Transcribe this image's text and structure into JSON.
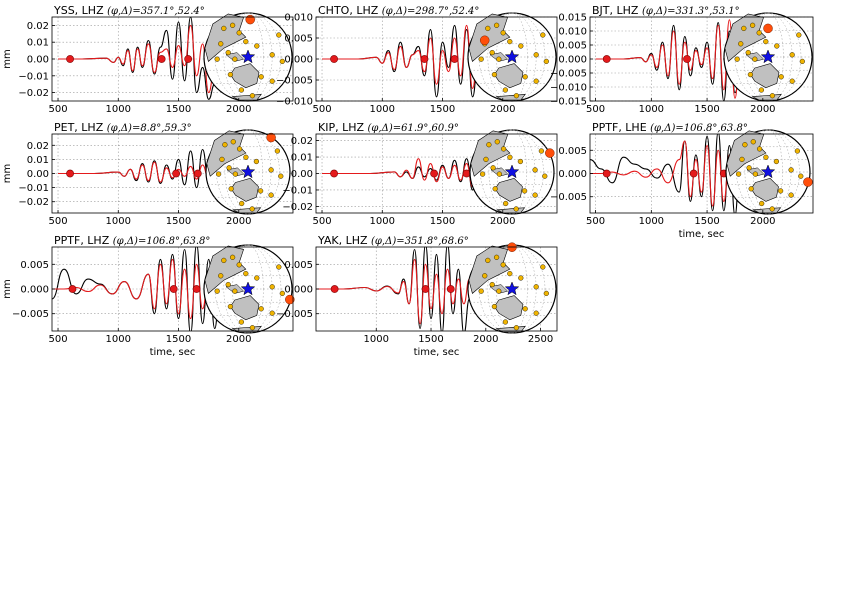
{
  "colors": {
    "observed": "#000000",
    "synthetic": "#e41a1c",
    "marker": "#e41a1c",
    "grid": "#9a9a9a",
    "globe_land": "#c0c0c0",
    "globe_station": "#f0b400",
    "globe_active": "#ff4e0a",
    "globe_event": "#1010e0"
  },
  "icons": [
    "globe-inset-icon",
    "event-star-icon",
    "station-dot-icon"
  ],
  "chart_data": [
    {
      "type": "line",
      "title": "YSS, LHZ",
      "angles": "(φ,Δ)=357.1°,52.4°",
      "ylabel": "mm",
      "xlabel": "",
      "xlim": [
        450,
        2450
      ],
      "ylim": [
        -0.025,
        0.025
      ],
      "xticks": [
        500,
        1000,
        1500,
        2000
      ],
      "yticks": [
        -0.02,
        -0.01,
        0.0,
        0.01,
        0.02
      ],
      "ytick_labels": [
        "−0.02",
        "−0.01",
        "0.00",
        "0.01",
        "0.02"
      ],
      "grid": true,
      "series": [
        {
          "key": "obs",
          "x": [
            500,
            700,
            900,
            960,
            1000,
            1040,
            1080,
            1120,
            1160,
            1200,
            1250,
            1300,
            1350,
            1400,
            1450,
            1500,
            1550,
            1600,
            1650,
            1700,
            1750,
            1800
          ],
          "values": [
            0,
            0,
            0.0005,
            -0.002,
            0.001,
            -0.004,
            0.006,
            -0.008,
            0.007,
            -0.005,
            0.011,
            -0.009,
            0.007,
            0.017,
            -0.012,
            0.022,
            -0.013,
            0.025,
            -0.02,
            -0.005,
            -0.024,
            -0.015
          ]
        },
        {
          "key": "syn",
          "x": [
            500,
            700,
            900,
            960,
            1000,
            1040,
            1080,
            1120,
            1160,
            1200,
            1250,
            1300,
            1350,
            1400,
            1450,
            1500,
            1550,
            1600,
            1650,
            1700,
            1750,
            1800,
            1850
          ],
          "values": [
            0,
            0,
            0.0005,
            -0.002,
            0.001,
            -0.003,
            0.005,
            -0.007,
            0.006,
            -0.004,
            0.009,
            -0.008,
            0.004,
            0.006,
            -0.005,
            0.008,
            -0.004,
            0.02,
            -0.01,
            0.009,
            -0.02,
            -0.005,
            0.003
          ]
        }
      ],
      "markers": [
        600,
        1360,
        1580
      ]
    },
    {
      "type": "line",
      "title": "CHTO, LHZ",
      "angles": "(φ,Δ)=298.7°,52.4°",
      "ylabel": "",
      "xlabel": "",
      "xlim": [
        450,
        2450
      ],
      "ylim": [
        -0.01,
        0.01
      ],
      "xticks": [
        500,
        1000,
        1500,
        2000
      ],
      "yticks": [
        -0.01,
        -0.005,
        0.0,
        0.005,
        0.01
      ],
      "ytick_labels": [
        "−0.010",
        "−0.005",
        "0.000",
        "0.005",
        "0.010"
      ],
      "grid": true,
      "series": [
        {
          "key": "obs",
          "x": [
            500,
            800,
            950,
            1000,
            1050,
            1100,
            1150,
            1200,
            1250,
            1300,
            1350,
            1400,
            1450,
            1500,
            1550,
            1600,
            1650,
            1700,
            1750,
            1800,
            1850
          ],
          "values": [
            0,
            0,
            0.0004,
            -0.001,
            0.002,
            -0.003,
            0.004,
            -0.002,
            0.001,
            0.003,
            -0.004,
            0.007,
            -0.009,
            0.004,
            -0.002,
            0.008,
            -0.006,
            0.007,
            -0.009,
            0.002,
            -0.001
          ]
        },
        {
          "key": "syn",
          "x": [
            500,
            800,
            950,
            1000,
            1050,
            1100,
            1150,
            1200,
            1250,
            1300,
            1350,
            1400,
            1450,
            1500,
            1550,
            1600,
            1650,
            1700,
            1750,
            1800,
            1850,
            1900
          ],
          "values": [
            0,
            0,
            0.0004,
            -0.001,
            0.0015,
            -0.0025,
            0.003,
            -0.002,
            0.001,
            0.002,
            -0.003,
            0.005,
            -0.006,
            0.002,
            -0.003,
            0.005,
            -0.004,
            0.008,
            -0.007,
            0.005,
            -0.005,
            0.002
          ]
        }
      ],
      "markers": [
        600,
        1350,
        1600
      ]
    },
    {
      "type": "line",
      "title": "BJT, LHZ",
      "angles": "(φ,Δ)=331.3°,53.1°",
      "ylabel": "",
      "xlabel": "",
      "xlim": [
        450,
        2450
      ],
      "ylim": [
        -0.015,
        0.015
      ],
      "xticks": [
        500,
        1000,
        1500,
        2000
      ],
      "yticks": [
        -0.015,
        -0.01,
        -0.005,
        0.0,
        0.005,
        0.01,
        0.015
      ],
      "ytick_labels": [
        "−0.015",
        "−0.010",
        "−0.005",
        "0.000",
        "0.005",
        "0.010",
        "0.015"
      ],
      "grid": true,
      "series": [
        {
          "key": "obs",
          "x": [
            500,
            750,
            900,
            950,
            1000,
            1050,
            1100,
            1150,
            1200,
            1250,
            1300,
            1350,
            1400,
            1450,
            1500,
            1550,
            1600,
            1650,
            1700,
            1750,
            1800
          ],
          "values": [
            0,
            0,
            0.0005,
            -0.001,
            0.002,
            -0.004,
            0.006,
            -0.007,
            0.012,
            -0.011,
            0.008,
            -0.006,
            0.004,
            -0.003,
            0.006,
            -0.009,
            0.013,
            -0.015,
            0.01,
            -0.012,
            -0.005
          ]
        },
        {
          "key": "syn",
          "x": [
            500,
            750,
            900,
            950,
            1000,
            1050,
            1100,
            1150,
            1200,
            1250,
            1300,
            1350,
            1400,
            1450,
            1500,
            1550,
            1600,
            1650,
            1700,
            1750,
            1800,
            1850
          ],
          "values": [
            0,
            0,
            0.0005,
            -0.001,
            0.0015,
            -0.003,
            0.005,
            -0.006,
            0.01,
            -0.009,
            0.006,
            -0.004,
            0.003,
            -0.002,
            0.004,
            -0.007,
            0.012,
            -0.011,
            0.014,
            -0.014,
            0.006,
            -0.003
          ]
        }
      ],
      "markers": [
        600,
        1320,
        1680
      ]
    },
    {
      "type": "line",
      "title": "PET, LHZ",
      "angles": "(φ,Δ)=8.8°,59.3°",
      "ylabel": "mm",
      "xlabel": "",
      "xlim": [
        450,
        2450
      ],
      "ylim": [
        -0.028,
        0.028
      ],
      "xticks": [
        500,
        1000,
        1500,
        2000
      ],
      "yticks": [
        -0.02,
        -0.01,
        0.0,
        0.01,
        0.02
      ],
      "ytick_labels": [
        "−0.02",
        "−0.01",
        "0.00",
        "0.01",
        "0.02"
      ],
      "grid": true,
      "series": [
        {
          "key": "obs",
          "x": [
            500,
            800,
            1000,
            1050,
            1100,
            1150,
            1200,
            1250,
            1300,
            1350,
            1400,
            1450,
            1500,
            1550,
            1600,
            1650,
            1700,
            1750,
            1800,
            1850,
            1900
          ],
          "values": [
            0,
            0,
            0.001,
            -0.002,
            0.003,
            -0.005,
            0.007,
            -0.006,
            0.009,
            -0.007,
            0.006,
            -0.004,
            0.01,
            -0.008,
            0.016,
            -0.01,
            0.017,
            -0.006,
            0.012,
            -0.02,
            0.005
          ]
        },
        {
          "key": "syn",
          "x": [
            500,
            800,
            1000,
            1050,
            1100,
            1150,
            1200,
            1250,
            1300,
            1350,
            1400,
            1450,
            1500,
            1550,
            1600,
            1650,
            1700,
            1750,
            1800,
            1850,
            1900,
            1950
          ],
          "values": [
            0,
            0,
            0.001,
            -0.002,
            0.003,
            -0.004,
            0.006,
            -0.005,
            0.008,
            -0.006,
            0.004,
            -0.003,
            0.003,
            -0.002,
            0.005,
            -0.004,
            0.006,
            -0.004,
            0.009,
            -0.012,
            0.015,
            -0.021
          ]
        }
      ],
      "markers": [
        600,
        1480,
        1660
      ]
    },
    {
      "type": "line",
      "title": "KIP, LHZ",
      "angles": "(φ,Δ)=61.9°,60.9°",
      "ylabel": "",
      "xlabel": "",
      "xlim": [
        450,
        2450
      ],
      "ylim": [
        -0.024,
        0.024
      ],
      "xticks": [
        500,
        1000,
        1500,
        2000
      ],
      "yticks": [
        -0.02,
        -0.01,
        0.0,
        0.01,
        0.02
      ],
      "ytick_labels": [
        "−0.02",
        "−0.01",
        "0.00",
        "0.01",
        "0.02"
      ],
      "grid": true,
      "series": [
        {
          "key": "obs",
          "x": [
            500,
            900,
            1100,
            1150,
            1200,
            1250,
            1300,
            1350,
            1400,
            1450,
            1500,
            1550,
            1600,
            1650,
            1700,
            1750,
            1800,
            1850,
            1900,
            1950
          ],
          "values": [
            0,
            0,
            0.001,
            -0.002,
            0.001,
            -0.003,
            0.004,
            -0.002,
            0.003,
            -0.004,
            0.005,
            -0.003,
            0.008,
            -0.005,
            0.009,
            -0.01,
            0.006,
            -0.012,
            0.015,
            -0.024
          ]
        },
        {
          "key": "syn",
          "x": [
            500,
            900,
            1100,
            1150,
            1200,
            1250,
            1300,
            1350,
            1400,
            1450,
            1500,
            1550,
            1600,
            1650,
            1700,
            1750,
            1800,
            1850,
            1900,
            1950
          ],
          "values": [
            0,
            0,
            0.001,
            -0.002,
            0.002,
            -0.003,
            0.009,
            -0.004,
            0.006,
            -0.005,
            0.004,
            -0.003,
            0.005,
            -0.004,
            0.006,
            -0.008,
            0.004,
            -0.01,
            0.012,
            -0.02
          ]
        }
      ],
      "markers": [
        600,
        1430,
        1700
      ]
    },
    {
      "type": "line",
      "title": "PPTF, LHE",
      "angles": "(φ,Δ)=106.8°,63.8°",
      "ylabel": "",
      "xlabel": "time, sec",
      "xlim": [
        450,
        2450
      ],
      "ylim": [
        -0.0085,
        0.0085
      ],
      "xticks": [
        500,
        1000,
        1500,
        2000
      ],
      "yticks": [
        -0.005,
        0.0,
        0.005
      ],
      "ytick_labels": [
        "−0.005",
        "0.000",
        "0.005"
      ],
      "grid": true,
      "series": [
        {
          "key": "obs",
          "x": [
            450,
            550,
            650,
            750,
            850,
            950,
            1050,
            1150,
            1250,
            1300,
            1350,
            1400,
            1450,
            1500,
            1550,
            1600,
            1650,
            1700,
            1750,
            1800,
            1850
          ],
          "values": [
            0.003,
            0.001,
            -0.002,
            0.0035,
            0.002,
            0.001,
            -0.001,
            0.002,
            -0.004,
            0.007,
            -0.006,
            0.004,
            -0.005,
            0.008,
            -0.008,
            0.009,
            -0.008,
            0.006,
            -0.009,
            0.005,
            -0.003
          ]
        },
        {
          "key": "syn",
          "x": [
            450,
            550,
            650,
            750,
            850,
            950,
            1050,
            1150,
            1250,
            1300,
            1350,
            1400,
            1450,
            1500,
            1550,
            1600,
            1650,
            1700,
            1750,
            1800,
            1850,
            1900,
            1950
          ],
          "values": [
            0,
            0,
            0.0003,
            -0.0003,
            0.0005,
            -0.0008,
            0.001,
            -0.002,
            0.003,
            0.007,
            -0.005,
            0.003,
            -0.004,
            0.006,
            -0.007,
            0.005,
            -0.006,
            0.004,
            -0.005,
            0.006,
            -0.004,
            0.003,
            -0.002
          ]
        }
      ],
      "markers": [
        600,
        1380,
        1650
      ]
    },
    {
      "type": "line",
      "title": "PPTF, LHZ",
      "angles": "(φ,Δ)=106.8°,63.8°",
      "ylabel": "mm",
      "xlabel": "time, sec",
      "xlim": [
        450,
        2450
      ],
      "ylim": [
        -0.0085,
        0.0085
      ],
      "xticks": [
        500,
        1000,
        1500,
        2000
      ],
      "yticks": [
        -0.005,
        0.0,
        0.005
      ],
      "ytick_labels": [
        "−0.005",
        "0.000",
        "0.005"
      ],
      "grid": true,
      "series": [
        {
          "key": "obs",
          "x": [
            450,
            550,
            650,
            750,
            850,
            950,
            1050,
            1150,
            1250,
            1300,
            1350,
            1400,
            1450,
            1500,
            1550,
            1600,
            1650,
            1700,
            1750,
            1800,
            1850
          ],
          "values": [
            -0.002,
            0.004,
            -0.001,
            0.002,
            0.001,
            -0.001,
            0.0015,
            -0.002,
            0.003,
            -0.005,
            0.006,
            -0.004,
            0.007,
            -0.006,
            0.008,
            -0.009,
            0.009,
            -0.007,
            0.006,
            -0.008,
            0.003
          ]
        },
        {
          "key": "syn",
          "x": [
            450,
            550,
            650,
            750,
            850,
            950,
            1050,
            1150,
            1250,
            1300,
            1350,
            1400,
            1450,
            1500,
            1550,
            1600,
            1650,
            1700,
            1750,
            1800,
            1850,
            1900,
            1950
          ],
          "values": [
            0,
            0,
            0.0003,
            -0.0005,
            0.0008,
            -0.001,
            0.0015,
            -0.002,
            0.003,
            -0.004,
            0.005,
            -0.003,
            0.006,
            -0.005,
            0.004,
            -0.006,
            0.005,
            -0.004,
            0.003,
            -0.005,
            0.006,
            -0.004,
            0.002
          ]
        }
      ],
      "markers": [
        620,
        1460,
        1650
      ]
    },
    {
      "type": "line",
      "title": "YAK, LHZ",
      "angles": "(φ,Δ)=351.8°,68.6°",
      "ylabel": "",
      "xlabel": "time, sec",
      "xlim": [
        450,
        2650
      ],
      "ylim": [
        -0.0085,
        0.0085
      ],
      "xticks": [
        1000,
        1500,
        2000,
        2500
      ],
      "yticks": [
        -0.005,
        0.0,
        0.005
      ],
      "ytick_labels": [
        "−0.005",
        "0.000",
        "0.005"
      ],
      "grid": true,
      "series": [
        {
          "key": "obs",
          "x": [
            450,
            700,
            900,
            1000,
            1100,
            1200,
            1250,
            1300,
            1350,
            1400,
            1450,
            1500,
            1550,
            1600,
            1650,
            1700,
            1750,
            1800,
            1850
          ],
          "values": [
            0,
            0,
            0.0003,
            -0.0004,
            0.0006,
            -0.001,
            0.002,
            -0.003,
            0.008,
            -0.008,
            0.009,
            -0.006,
            0.007,
            -0.009,
            0.009,
            -0.005,
            0.004,
            -0.009,
            -0.002
          ]
        },
        {
          "key": "syn",
          "x": [
            450,
            700,
            900,
            1000,
            1100,
            1200,
            1250,
            1300,
            1350,
            1400,
            1450,
            1500,
            1550,
            1600,
            1650,
            1700,
            1750,
            1800,
            1850,
            1900,
            1950
          ],
          "values": [
            0,
            0,
            0.0003,
            -0.0004,
            0.0005,
            -0.0008,
            0.0015,
            -0.003,
            0.006,
            -0.007,
            0.005,
            -0.004,
            0.003,
            -0.005,
            0.004,
            -0.003,
            0.002,
            -0.003,
            0.002,
            -0.001,
            0.0005
          ]
        }
      ],
      "markers": [
        620,
        1450,
        1680
      ]
    }
  ]
}
